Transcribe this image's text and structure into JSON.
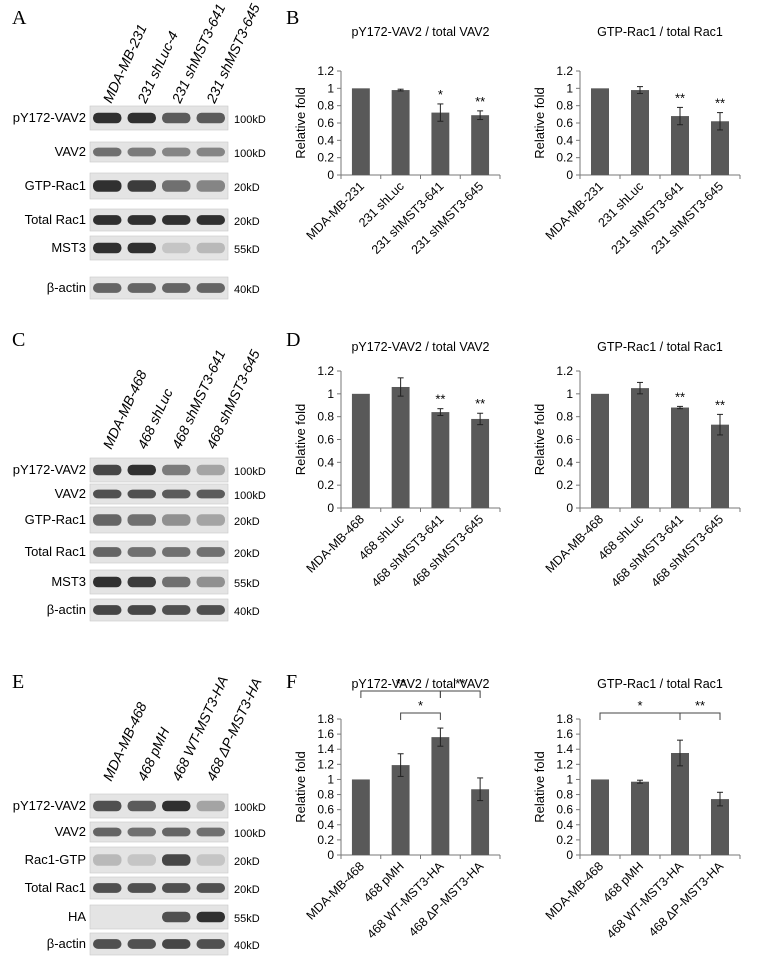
{
  "panels": {
    "A": "A",
    "B": "B",
    "C": "C",
    "D": "D",
    "E": "E",
    "F": "F"
  },
  "blots": [
    {
      "id": "A",
      "lanes": [
        "MDA-MB-231",
        "231 shLuc-4",
        "231 shMST3-641",
        "231 shMST3-645"
      ],
      "rows": [
        {
          "label": "pY172-VAV2",
          "mw": "100kD",
          "bands": [
            0.85,
            0.85,
            0.65,
            0.65
          ]
        },
        {
          "label": "VAV2",
          "mw": "100kD",
          "bands": [
            0.55,
            0.5,
            0.45,
            0.45
          ]
        },
        {
          "label": "GTP-Rac1",
          "mw": "20kD",
          "bands": [
            0.85,
            0.8,
            0.55,
            0.45
          ]
        },
        {
          "label": "Total Rac1",
          "mw": "20kD",
          "bands": [
            0.85,
            0.85,
            0.85,
            0.85
          ]
        },
        {
          "label": "MST3",
          "mw": "55kD",
          "bands": [
            0.85,
            0.85,
            0.15,
            0.2
          ]
        },
        {
          "label": "β-actin",
          "mw": "40kD",
          "bands": [
            0.6,
            0.6,
            0.6,
            0.6
          ]
        }
      ]
    },
    {
      "id": "C",
      "lanes": [
        "MDA-MB-468",
        "468 shLuc",
        "468 shMST3-641",
        "468 shMST3-645"
      ],
      "rows": [
        {
          "label": "pY172-VAV2",
          "mw": "100kD",
          "bands": [
            0.75,
            0.85,
            0.5,
            0.3
          ]
        },
        {
          "label": "VAV2",
          "mw": "100kD",
          "bands": [
            0.7,
            0.7,
            0.65,
            0.65
          ]
        },
        {
          "label": "GTP-Rac1",
          "mw": "20kD",
          "bands": [
            0.6,
            0.55,
            0.4,
            0.3
          ]
        },
        {
          "label": "Total Rac1",
          "mw": "20kD",
          "bands": [
            0.6,
            0.55,
            0.55,
            0.55
          ]
        },
        {
          "label": "MST3",
          "mw": "55kD",
          "bands": [
            0.85,
            0.8,
            0.55,
            0.4
          ]
        },
        {
          "label": "β-actin",
          "mw": "40kD",
          "bands": [
            0.75,
            0.75,
            0.7,
            0.7
          ]
        }
      ]
    },
    {
      "id": "E",
      "lanes": [
        "MDA-MB-468",
        "468 pMH",
        "468 WT-MST3-HA",
        "468 ΔP-MST3-HA"
      ],
      "rows": [
        {
          "label": "pY172-VAV2",
          "mw": "100kD",
          "bands": [
            0.7,
            0.65,
            0.85,
            0.3
          ]
        },
        {
          "label": "VAV2",
          "mw": "100kD",
          "bands": [
            0.6,
            0.55,
            0.6,
            0.55
          ]
        },
        {
          "label": "Rac1-GTP",
          "mw": "20kD",
          "bands": [
            0.2,
            0.15,
            0.75,
            0.15
          ]
        },
        {
          "label": "Total Rac1",
          "mw": "20kD",
          "bands": [
            0.7,
            0.7,
            0.7,
            0.7
          ]
        },
        {
          "label": "HA",
          "mw": "55kD",
          "bands": [
            0,
            0,
            0.7,
            0.85
          ]
        },
        {
          "label": "β-actin",
          "mw": "40kD",
          "bands": [
            0.7,
            0.7,
            0.75,
            0.7
          ]
        }
      ]
    }
  ],
  "chart_data": [
    {
      "type": "bar",
      "panel": "B",
      "title": "pY172-VAV2 / total VAV2",
      "ylabel": "Relative fold",
      "categories": [
        "MDA-MB-231",
        "231 shLuc",
        "231 shMST3-641",
        "231 shMST3-645"
      ],
      "values": [
        1.0,
        0.98,
        0.72,
        0.69
      ],
      "errors": [
        0.0,
        0.01,
        0.1,
        0.05
      ],
      "significance": [
        "",
        "",
        "*",
        "**"
      ],
      "ylim": [
        0,
        1.2
      ],
      "yticks": [
        "0",
        "0.2",
        "0.4",
        "0.6",
        "0.8",
        "1",
        "1.2"
      ],
      "brackets": []
    },
    {
      "type": "bar",
      "panel": "B",
      "title": "GTP-Rac1 / total Rac1",
      "ylabel": "Relative fold",
      "categories": [
        "MDA-MB-231",
        "231 shLuc",
        "231 shMST3-641",
        "231 shMST3-645"
      ],
      "values": [
        1.0,
        0.98,
        0.68,
        0.62
      ],
      "errors": [
        0.0,
        0.04,
        0.1,
        0.1
      ],
      "significance": [
        "",
        "",
        "**",
        "**"
      ],
      "ylim": [
        0,
        1.2
      ],
      "yticks": [
        "0",
        "0.2",
        "0.4",
        "0.6",
        "0.8",
        "1",
        "1.2"
      ],
      "brackets": []
    },
    {
      "type": "bar",
      "panel": "D",
      "title": "pY172-VAV2 / total VAV2",
      "ylabel": "Relative fold",
      "categories": [
        "MDA-MB-468",
        "468 shLuc",
        "468 shMST3-641",
        "468 shMST3-645"
      ],
      "values": [
        1.0,
        1.06,
        0.84,
        0.78
      ],
      "errors": [
        0.0,
        0.08,
        0.03,
        0.05
      ],
      "significance": [
        "",
        "",
        "**",
        "**"
      ],
      "ylim": [
        0,
        1.2
      ],
      "yticks": [
        "0",
        "0.2",
        "0.4",
        "0.6",
        "0.8",
        "1",
        "1.2"
      ],
      "brackets": []
    },
    {
      "type": "bar",
      "panel": "D",
      "title": "GTP-Rac1 / total Rac1",
      "ylabel": "Relative fold",
      "categories": [
        "MDA-MB-468",
        "468 shLuc",
        "468 shMST3-641",
        "468 shMST3-645"
      ],
      "values": [
        1.0,
        1.05,
        0.88,
        0.73
      ],
      "errors": [
        0.0,
        0.05,
        0.01,
        0.09
      ],
      "significance": [
        "",
        "",
        "**",
        "**"
      ],
      "ylim": [
        0,
        1.2
      ],
      "yticks": [
        "0",
        "0.2",
        "0.4",
        "0.6",
        "0.8",
        "1",
        "1.2"
      ],
      "brackets": []
    },
    {
      "type": "bar",
      "panel": "F",
      "title": "pY172-VAV2 / total VAV2",
      "ylabel": "Relative fold",
      "categories": [
        "MDA-MB-468",
        "468 pMH",
        "468 WT-MST3-HA",
        "468 ΔP-MST3-HA"
      ],
      "values": [
        1.0,
        1.19,
        1.56,
        0.87
      ],
      "errors": [
        0.0,
        0.15,
        0.12,
        0.15
      ],
      "significance": [
        "",
        "",
        "",
        ""
      ],
      "ylim": [
        0,
        1.8
      ],
      "yticks": [
        "0",
        "0.2",
        "0.4",
        "0.6",
        "0.8",
        "1",
        "1.2",
        "1.4",
        "1.6",
        "1.8"
      ],
      "brackets": [
        {
          "from": 0,
          "to": 2,
          "label": "**",
          "level": 2
        },
        {
          "from": 2,
          "to": 3,
          "label": "**",
          "level": 2
        },
        {
          "from": 1,
          "to": 2,
          "label": "*",
          "level": 1
        }
      ]
    },
    {
      "type": "bar",
      "panel": "F",
      "title": "GTP-Rac1 / total Rac1",
      "ylabel": "Relative fold",
      "categories": [
        "MDA-MB-468",
        "468 pMH",
        "468 WT-MST3-HA",
        "468 ΔP-MST3-HA"
      ],
      "values": [
        1.0,
        0.97,
        1.35,
        0.74
      ],
      "errors": [
        0.0,
        0.02,
        0.17,
        0.09
      ],
      "significance": [
        "",
        "",
        "",
        ""
      ],
      "ylim": [
        0,
        1.8
      ],
      "yticks": [
        "0",
        "0.2",
        "0.4",
        "0.6",
        "0.8",
        "1",
        "1.2",
        "1.4",
        "1.6",
        "1.8"
      ],
      "brackets": [
        {
          "from": 0,
          "to": 2,
          "label": "*",
          "level": 1
        },
        {
          "from": 2,
          "to": 3,
          "label": "**",
          "level": 1
        }
      ]
    }
  ]
}
